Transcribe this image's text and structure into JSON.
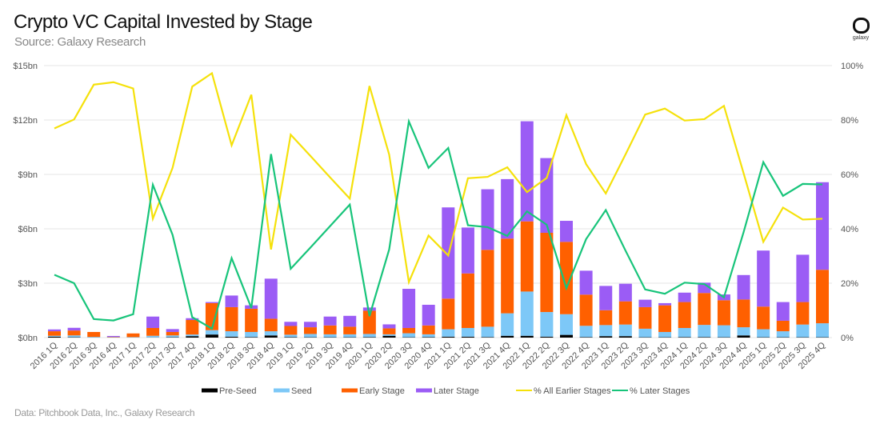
{
  "header": {
    "title": "Crypto VC Capital Invested by Stage",
    "subtitle": "Source: Galaxy Research",
    "logo_text": "galaxy"
  },
  "footer": {
    "note": "Data: Pitchbook Data, Inc., Galaxy Research"
  },
  "colors": {
    "pre_seed": "#000000",
    "seed": "#7dc8f7",
    "early": "#ff6000",
    "later": "#9b5cf5",
    "pct_earlier": "#f5e10a",
    "pct_later": "#17c47a",
    "grid": "#e6e6e6"
  },
  "chart_data": {
    "type": "bar",
    "stacked": true,
    "title": "Crypto VC Capital Invested by Stage",
    "grid": true,
    "legend": "bottom",
    "y_left": {
      "ylim": [
        0,
        15
      ],
      "ticks": [
        "$0bn",
        "$3bn",
        "$6bn",
        "$9bn",
        "$12bn",
        "$15bn"
      ]
    },
    "y_right": {
      "ylim": [
        0,
        100
      ],
      "ticks": [
        "0%",
        "20%",
        "40%",
        "60%",
        "80%",
        "100%"
      ]
    },
    "categories": [
      "2016 1Q",
      "2016 2Q",
      "2016 3Q",
      "2016 4Q",
      "2017 1Q",
      "2017 2Q",
      "2017 3Q",
      "2017 4Q",
      "2018 1Q",
      "2018 2Q",
      "2018 3Q",
      "2018 4Q",
      "2019 1Q",
      "2019 2Q",
      "2019 3Q",
      "2019 4Q",
      "2020 1Q",
      "2020 2Q",
      "2020 3Q",
      "2020 4Q",
      "2021 1Q",
      "2021 2Q",
      "2021 3Q",
      "2021 4Q",
      "2022 1Q",
      "2022 2Q",
      "2022 3Q",
      "2022 4Q",
      "2023 1Q",
      "2023 2Q",
      "2023 3Q",
      "2023 4Q",
      "2024 1Q",
      "2024 2Q",
      "2024 3Q",
      "2024 4Q",
      "2025 1Q",
      "2025 2Q",
      "2025 3Q",
      "2025 4Q"
    ],
    "series": [
      {
        "name": "Pre-Seed",
        "kind": "bar",
        "axis": "left",
        "values": [
          0.05,
          0.02,
          0.01,
          0.01,
          0.01,
          0.01,
          0.02,
          0.08,
          0.17,
          0.05,
          0.03,
          0.12,
          0.03,
          0.02,
          0.02,
          0.02,
          0.03,
          0.1,
          0.02,
          0.03,
          0.05,
          0.05,
          0.03,
          0.1,
          0.1,
          0.05,
          0.15,
          0.03,
          0.08,
          0.08,
          0.02,
          0.02,
          0.03,
          0.03,
          0.02,
          0.12,
          0.02,
          0.02,
          0.02,
          0.02
        ]
      },
      {
        "name": "Seed",
        "kind": "bar",
        "axis": "left",
        "values": [
          0.05,
          0.1,
          0.03,
          0.01,
          0.02,
          0.09,
          0.1,
          0.09,
          0.24,
          0.3,
          0.28,
          0.23,
          0.13,
          0.18,
          0.16,
          0.16,
          0.17,
          0.08,
          0.22,
          0.15,
          0.41,
          0.48,
          0.57,
          1.24,
          2.44,
          1.36,
          1.14,
          0.62,
          0.61,
          0.64,
          0.47,
          0.29,
          0.5,
          0.67,
          0.66,
          0.45,
          0.44,
          0.33,
          0.7,
          0.77
        ]
      },
      {
        "name": "Early Stage",
        "kind": "bar",
        "axis": "left",
        "values": [
          0.25,
          0.27,
          0.27,
          0.02,
          0.2,
          0.43,
          0.19,
          0.8,
          1.49,
          1.33,
          1.28,
          0.69,
          0.48,
          0.37,
          0.49,
          0.42,
          1.28,
          0.33,
          0.29,
          0.49,
          1.69,
          3.01,
          4.24,
          4.12,
          3.87,
          4.37,
          3.99,
          1.72,
          0.82,
          1.28,
          1.19,
          1.47,
          1.43,
          1.76,
          1.38,
          1.53,
          1.25,
          0.58,
          1.24,
          2.95
        ]
      },
      {
        "name": "Later Stage",
        "kind": "bar",
        "axis": "left",
        "values": [
          0.1,
          0.15,
          0.0,
          0.05,
          0.0,
          0.63,
          0.16,
          0.1,
          0.06,
          0.64,
          0.19,
          2.21,
          0.23,
          0.3,
          0.49,
          0.6,
          0.18,
          0.22,
          2.16,
          1.14,
          5.03,
          2.53,
          3.34,
          3.28,
          5.52,
          4.12,
          1.16,
          1.32,
          1.34,
          0.97,
          0.41,
          0.12,
          0.52,
          0.57,
          0.32,
          1.35,
          3.09,
          1.03,
          2.61,
          4.83
        ]
      },
      {
        "name": "% All Earlier Stages",
        "kind": "line",
        "axis": "right",
        "values": [
          76.9,
          80.2,
          93.0,
          93.9,
          91.6,
          43.7,
          62.4,
          92.3,
          97.2,
          70.7,
          89.3,
          32.4,
          74.6,
          66.8,
          58.9,
          51.1,
          92.5,
          67.3,
          20.4,
          37.5,
          30.2,
          58.6,
          59.1,
          62.6,
          53.5,
          58.7,
          81.8,
          63.8,
          53.0,
          67.3,
          82.0,
          84.2,
          79.8,
          80.3,
          85.2,
          60.4,
          35.2,
          47.8,
          43.4,
          43.7
        ]
      },
      {
        "name": "% Later Stages",
        "kind": "line",
        "axis": "right",
        "values": [
          23.1,
          20.0,
          6.8,
          6.3,
          8.6,
          56.2,
          37.8,
          7.5,
          3.3,
          29.2,
          10.9,
          67.5,
          25.3,
          33.1,
          41.0,
          48.9,
          7.9,
          32.4,
          79.5,
          62.4,
          69.7,
          41.3,
          40.6,
          37.4,
          46.4,
          41.5,
          18.2,
          36.2,
          46.9,
          32.0,
          17.7,
          16.1,
          20.2,
          19.7,
          14.8,
          38.8,
          64.5,
          52.1,
          56.5,
          56.3
        ]
      }
    ]
  }
}
